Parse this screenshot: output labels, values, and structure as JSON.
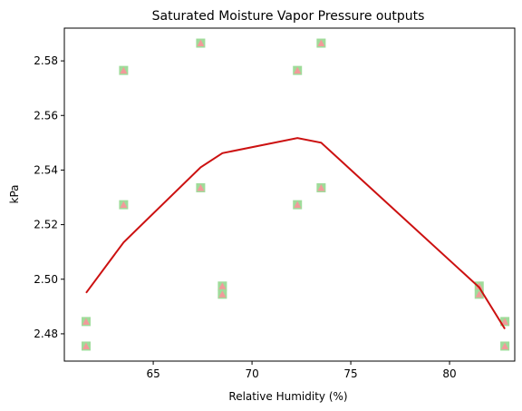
{
  "chart_data": {
    "type": "scatter",
    "title": "Saturated Moisture Vapor Pressure outputs",
    "xlabel": "Relative Humidity (%)",
    "ylabel": "kPa",
    "xlim": [
      60.5,
      83.3
    ],
    "ylim": [
      2.47,
      2.592
    ],
    "xticks": [
      65,
      70,
      75,
      80
    ],
    "yticks": [
      2.48,
      2.5,
      2.52,
      2.54,
      2.56,
      2.58
    ],
    "ytick_labels": [
      "2.48",
      "2.50",
      "2.52",
      "2.54",
      "2.56",
      "2.58"
    ],
    "grid": false,
    "series": [
      {
        "marker": "square",
        "color": "#9fdc9a",
        "points": [
          [
            61.6,
            2.4845
          ],
          [
            61.6,
            2.4755
          ],
          [
            63.5,
            2.5765
          ],
          [
            63.5,
            2.5273
          ],
          [
            67.4,
            2.5865
          ],
          [
            67.4,
            2.5335
          ],
          [
            68.5,
            2.4975
          ],
          [
            68.5,
            2.4945
          ],
          [
            72.3,
            2.5765
          ],
          [
            72.3,
            2.5273
          ],
          [
            73.5,
            2.5865
          ],
          [
            73.5,
            2.5335
          ],
          [
            81.5,
            2.4975
          ],
          [
            81.5,
            2.4945
          ],
          [
            82.8,
            2.4845
          ],
          [
            82.8,
            2.4755
          ]
        ]
      },
      {
        "marker": "triangle",
        "color": "#f29a9a",
        "points": [
          [
            61.6,
            2.4845
          ],
          [
            61.6,
            2.4755
          ],
          [
            63.5,
            2.5765
          ],
          [
            63.5,
            2.5273
          ],
          [
            67.4,
            2.5865
          ],
          [
            67.4,
            2.5335
          ],
          [
            68.5,
            2.4975
          ],
          [
            68.5,
            2.4945
          ],
          [
            72.3,
            2.5765
          ],
          [
            72.3,
            2.5273
          ],
          [
            73.5,
            2.5865
          ],
          [
            73.5,
            2.5335
          ],
          [
            81.5,
            2.4975
          ],
          [
            81.5,
            2.4945
          ],
          [
            82.8,
            2.4845
          ],
          [
            82.8,
            2.4755
          ]
        ]
      },
      {
        "type": "line",
        "color": "#cc1111",
        "points": [
          [
            61.6,
            2.495
          ],
          [
            63.5,
            2.5135
          ],
          [
            67.4,
            2.541
          ],
          [
            68.5,
            2.5462
          ],
          [
            72.3,
            2.5517
          ],
          [
            73.5,
            2.55
          ],
          [
            81.5,
            2.497
          ],
          [
            82.8,
            2.4818
          ]
        ]
      }
    ]
  }
}
